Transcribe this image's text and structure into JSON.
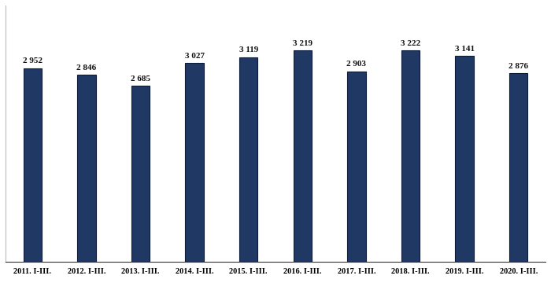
{
  "chart_data": {
    "type": "bar",
    "categories": [
      "2011. I-III.",
      "2012. I-III.",
      "2013. I-III.",
      "2014. I-III.",
      "2015. I-III.",
      "2016. I-III.",
      "2017. I-III.",
      "2018. I-III.",
      "2019. I-III.",
      "2020. I-III."
    ],
    "values": [
      2952,
      2846,
      2685,
      3027,
      3119,
      3219,
      2903,
      3222,
      3141,
      2876
    ],
    "value_labels": [
      "2 952",
      "2 846",
      "2 685",
      "3 027",
      "3 119",
      "3 219",
      "2 903",
      "3 222",
      "3 141",
      "2 876"
    ],
    "color": "#1f3864",
    "ylim": [
      0,
      3900
    ],
    "grid": false,
    "data_labels": true,
    "tick_labels": "x"
  }
}
